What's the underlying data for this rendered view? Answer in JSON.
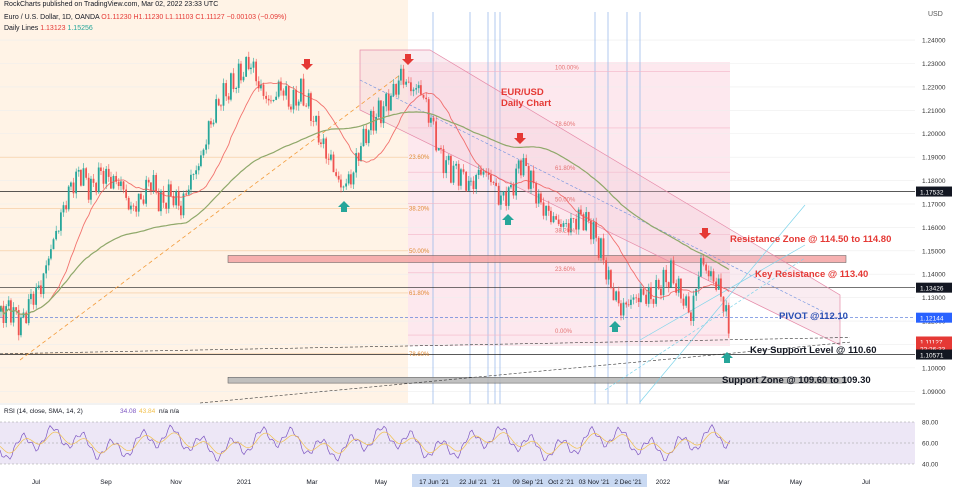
{
  "header": {
    "publisher": "RockCharts published on TradingView.com, Mar 02, 2022 23:33 UTC",
    "symbol_line": "Euro / U.S. Dollar, 1D, OANDA",
    "ohlc": "O1.11230 H1.11230 L1.11103 C1.11127 −0.00103 (−0.09%)",
    "daily_lines_label": "Daily Lines",
    "daily_lines_values": [
      "1.13123",
      "1.15256"
    ]
  },
  "currency": "USD",
  "chart_data": {
    "type": "candlestick",
    "title": "EUR/USD Daily Chart",
    "y_axis": {
      "min": 1.085,
      "max": 1.252,
      "ticks": [
        1.24,
        1.23,
        1.22,
        1.21,
        1.2,
        1.19,
        1.18,
        1.17,
        1.16,
        1.15,
        1.14,
        1.13,
        1.12,
        1.11,
        1.1,
        1.09
      ],
      "tick_labels": [
        "1.24000",
        "1.23000",
        "1.22000",
        "1.21000",
        "1.20000",
        "1.19000",
        "1.18000",
        "1.17000",
        "1.16000",
        "1.15000",
        "1.14000",
        "1.13000",
        "1.12000",
        "1.11000",
        "1.10000",
        "1.09000"
      ]
    },
    "x_axis": {
      "labels": [
        "Jul",
        "Sep",
        "Nov",
        "2021",
        "Mar",
        "May",
        "17 Jun '21",
        "22 Jul '21",
        "'21",
        "09 Sep '21",
        "Oct 2 '21",
        "03 Nov '21",
        "2 Dec '21",
        "2022",
        "Mar",
        "May",
        "Jul"
      ]
    },
    "price_path": [
      [
        0,
        1.124
      ],
      [
        10,
        1.125
      ],
      [
        20,
        1.118
      ],
      [
        30,
        1.13
      ],
      [
        40,
        1.135
      ],
      [
        50,
        1.15
      ],
      [
        60,
        1.165
      ],
      [
        70,
        1.178
      ],
      [
        80,
        1.183
      ],
      [
        90,
        1.176
      ],
      [
        100,
        1.184
      ],
      [
        110,
        1.18
      ],
      [
        120,
        1.178
      ],
      [
        130,
        1.168
      ],
      [
        140,
        1.172
      ],
      [
        150,
        1.18
      ],
      [
        160,
        1.17
      ],
      [
        170,
        1.175
      ],
      [
        180,
        1.168
      ],
      [
        190,
        1.18
      ],
      [
        200,
        1.19
      ],
      [
        210,
        1.205
      ],
      [
        220,
        1.215
      ],
      [
        230,
        1.22
      ],
      [
        240,
        1.226
      ],
      [
        250,
        1.23
      ],
      [
        260,
        1.218
      ],
      [
        270,
        1.214
      ],
      [
        280,
        1.22
      ],
      [
        290,
        1.212
      ],
      [
        300,
        1.218
      ],
      [
        310,
        1.21
      ],
      [
        320,
        1.196
      ],
      [
        330,
        1.188
      ],
      [
        340,
        1.178
      ],
      [
        350,
        1.18
      ],
      [
        360,
        1.195
      ],
      [
        370,
        1.205
      ],
      [
        380,
        1.21
      ],
      [
        390,
        1.215
      ],
      [
        400,
        1.225
      ],
      [
        410,
        1.22
      ],
      [
        420,
        1.218
      ],
      [
        430,
        1.206
      ],
      [
        440,
        1.19
      ],
      [
        450,
        1.185
      ],
      [
        460,
        1.182
      ],
      [
        470,
        1.178
      ],
      [
        480,
        1.185
      ],
      [
        490,
        1.18
      ],
      [
        500,
        1.172
      ],
      [
        510,
        1.176
      ],
      [
        520,
        1.188
      ],
      [
        530,
        1.18
      ],
      [
        540,
        1.17
      ],
      [
        550,
        1.165
      ],
      [
        560,
        1.16
      ],
      [
        570,
        1.162
      ],
      [
        580,
        1.165
      ],
      [
        590,
        1.16
      ],
      [
        600,
        1.15
      ],
      [
        610,
        1.135
      ],
      [
        620,
        1.125
      ],
      [
        630,
        1.128
      ],
      [
        640,
        1.132
      ],
      [
        650,
        1.13
      ],
      [
        660,
        1.135
      ],
      [
        670,
        1.14
      ],
      [
        680,
        1.132
      ],
      [
        690,
        1.122
      ],
      [
        700,
        1.145
      ],
      [
        710,
        1.14
      ],
      [
        720,
        1.132
      ],
      [
        730,
        1.112
      ]
    ],
    "levels": [
      {
        "name": "Resistance Zone @ 114.50 to 114.80",
        "low": 1.145,
        "high": 1.148,
        "color": "#f4a3a3"
      },
      {
        "name": "Key Resistance @ 113.40",
        "value": 1.13426
      },
      {
        "name": "PIVOT @112.10",
        "value": 1.12144
      },
      {
        "name": "Key Support Level @ 110.60",
        "value": 1.10571
      },
      {
        "name": "Support Zone @ 109.60 to 109.30",
        "low": 1.0935,
        "high": 1.096,
        "color": "#b5b5b5"
      },
      {
        "name": "",
        "value": 1.17532
      }
    ],
    "fib_levels": [
      {
        "label": "100.00%",
        "value": 1.2266
      },
      {
        "label": "78.60%",
        "value": 1.2025
      },
      {
        "label": "61.80%",
        "value": 1.1836
      },
      {
        "label": "50.00%",
        "value": 1.1703
      },
      {
        "label": "38.20%",
        "value": 1.157
      },
      {
        "label": "23.60%",
        "value": 1.1406
      },
      {
        "label": "0.00%",
        "value": 1.114
      }
    ],
    "left_fib_levels": [
      {
        "label": "23.60%",
        "value": 1.19
      },
      {
        "label": "38.20%",
        "value": 1.168
      },
      {
        "label": "50.00%",
        "value": 1.15
      },
      {
        "label": "61.80%",
        "value": 1.132
      },
      {
        "label": "78.60%",
        "value": 1.106
      }
    ],
    "price_tags": [
      {
        "value": "1.17532",
        "bg": "#131722"
      },
      {
        "value": "1.13426",
        "bg": "#131722"
      },
      {
        "value": "1.12144",
        "bg": "#2962ff"
      },
      {
        "value": "1.11127",
        "bg": "#e53935"
      },
      {
        "value": "22:26:33",
        "bg": "#e53935"
      },
      {
        "value": "1.10571",
        "bg": "#131722"
      }
    ],
    "rsi": {
      "label": "RSI (14, close, SMA, 14, 2)",
      "values_text": [
        "34.08",
        "43.84",
        "n/a",
        "n/a"
      ],
      "ticks": [
        "80.00",
        "60.00",
        "40.00"
      ]
    }
  }
}
